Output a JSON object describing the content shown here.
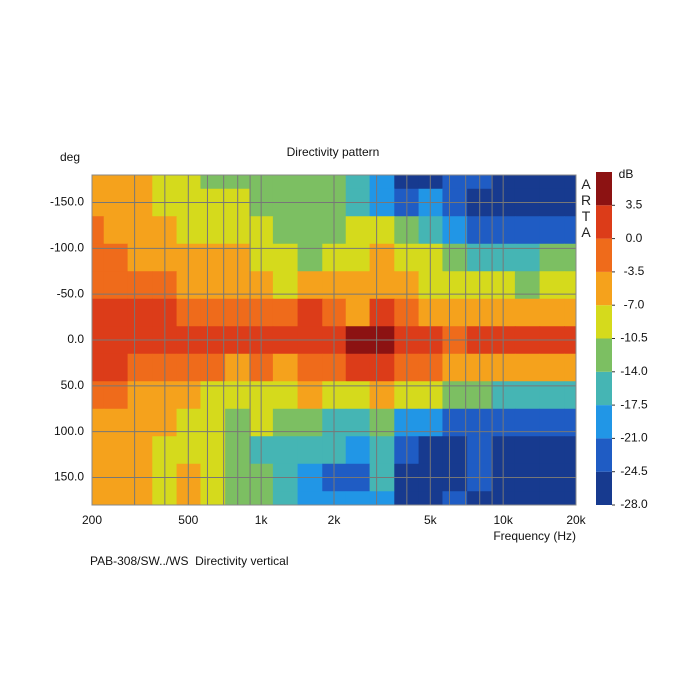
{
  "chart_data": {
    "type": "heatmap",
    "title": "Directivity pattern",
    "footer": "PAB-308/SW../WS  Directivity vertical",
    "x_label": "Frequency (Hz)",
    "y_label": "deg",
    "watermark": "ARTA",
    "colorbar_title": "dB",
    "x_log": true,
    "y_reversed": true,
    "grid": true,
    "xlim": [
      200,
      20000
    ],
    "xticks": [
      200,
      500,
      {
        "value": 1000,
        "label": "1k"
      },
      {
        "value": 2000,
        "label": "2k"
      },
      {
        "value": 5000,
        "label": "5k"
      },
      {
        "value": 10000,
        "label": "10k"
      },
      {
        "value": 20000,
        "label": "20k"
      }
    ],
    "x_minor_grid": [
      300,
      400,
      600,
      700,
      800,
      900,
      3000,
      4000,
      6000,
      7000,
      8000,
      9000
    ],
    "ylim": [
      -180,
      180
    ],
    "yticks": [
      {
        "value": -150,
        "label": "-150.0"
      },
      {
        "value": -100,
        "label": "-100.0"
      },
      {
        "value": -50,
        "label": "-50.0"
      },
      {
        "value": 0,
        "label": "0.0"
      },
      {
        "value": 50,
        "label": "50.0"
      },
      {
        "value": 100,
        "label": "100.0"
      },
      {
        "value": 150,
        "label": "150.0"
      }
    ],
    "colorlim": [
      -28,
      7
    ],
    "colorbar_ticks": [
      3.5,
      {
        "value": 0,
        "label": "0.0"
      },
      -3.5,
      {
        "value": -7,
        "label": "-7.0"
      },
      -10.5,
      {
        "value": -14,
        "label": "-14.0"
      },
      -17.5,
      {
        "value": -21,
        "label": "-21.0"
      },
      -24.5,
      {
        "value": -28,
        "label": "-28.0"
      }
    ],
    "colors": [
      "#173a8f",
      "#1f5cc4",
      "#2196e6",
      "#45b5b4",
      "#7cbf62",
      "#d5da1c",
      "#f5a21c",
      "#ef6b1b",
      "#dc3c19",
      "#8c1212"
    ],
    "x": [
      200,
      250,
      315,
      400,
      500,
      630,
      800,
      1000,
      1250,
      1600,
      2000,
      2500,
      3150,
      4000,
      5000,
      6300,
      8000,
      10000,
      12500,
      16000,
      20000
    ],
    "y": [
      -180,
      -150,
      -120,
      -90,
      -60,
      -30,
      0,
      30,
      60,
      90,
      120,
      150,
      180
    ],
    "values": [
      [
        -5,
        -5,
        -5,
        -9,
        -9,
        -12,
        -12,
        -12,
        -13,
        -13,
        -13,
        -15,
        -20,
        -26,
        -26,
        -23,
        -23,
        -26,
        -26,
        -26,
        -26
      ],
      [
        -5,
        -5,
        -5,
        -8,
        -9,
        -9,
        -9,
        -12,
        -12,
        -12,
        -12,
        -16,
        -19,
        -22,
        -19,
        -23,
        -25,
        -26,
        -26,
        -26,
        -26
      ],
      [
        -3,
        -5,
        -5,
        -6,
        -8,
        -9,
        -9,
        -9,
        -11,
        -12,
        -12,
        -9,
        -10,
        -12,
        -15,
        -19,
        -22,
        -23,
        -22,
        -23,
        -23
      ],
      [
        -2,
        -2,
        -4,
        -5,
        -5,
        -6,
        -6,
        -8,
        -9,
        -11,
        -9,
        -8,
        -6,
        -9,
        -10,
        -12,
        -15,
        -16,
        -15,
        -14,
        -13
      ],
      [
        -1,
        -1,
        -2,
        -3,
        -4,
        -5,
        -5,
        -6,
        -8,
        -6,
        -5,
        -5,
        -5,
        -6,
        -8,
        -9,
        -9,
        -10,
        -11,
        -10,
        -9
      ],
      [
        1,
        1,
        0.5,
        0.5,
        -2,
        -2,
        -3,
        -2,
        -1,
        0.5,
        -2,
        -4,
        1,
        -2,
        -4,
        -5,
        -5,
        -6,
        -5,
        -5,
        -6
      ],
      [
        1,
        1.5,
        1.5,
        1,
        0.5,
        1.5,
        1,
        0.5,
        0.5,
        1,
        2,
        4,
        5,
        2,
        1,
        -1,
        0.5,
        1,
        1,
        0.5,
        0.5
      ],
      [
        0.5,
        0.5,
        -1,
        -2,
        -2,
        -2,
        -4,
        -3,
        -4,
        -3,
        -2,
        0.5,
        0.5,
        -2,
        -3,
        -4,
        -5,
        -5,
        -5,
        -5,
        -5
      ],
      [
        -2,
        -2,
        -4,
        -5,
        -6,
        -8,
        -9,
        -8,
        -8,
        -6,
        -8,
        -10,
        -6,
        -9,
        -10,
        -13,
        -13,
        -15,
        -16,
        -15,
        -15
      ],
      [
        -5,
        -6,
        -6,
        -6,
        -8,
        -10,
        -11,
        -10,
        -12,
        -12,
        -15,
        -15,
        -13,
        -19,
        -18,
        -22,
        -23,
        -22,
        -23,
        -22,
        -22
      ],
      [
        -5,
        -5,
        -6,
        -9,
        -9,
        -10,
        -12,
        -15,
        -16,
        -15,
        -16,
        -19,
        -17,
        -22,
        -25,
        -26,
        -24,
        -26,
        -26,
        -26,
        -26
      ],
      [
        -5,
        -5,
        -6,
        -8,
        -6,
        -9,
        -12,
        -14,
        -16,
        -19,
        -22,
        -22,
        -17,
        -25,
        -26,
        -25,
        -24,
        -26,
        -27,
        -27,
        -27
      ],
      [
        -5,
        -5,
        -6,
        -9,
        -6,
        -9,
        -12,
        -13,
        -15,
        -18,
        -19,
        -21,
        -19,
        -25,
        -26,
        -23,
        -25,
        -26,
        -26,
        -26,
        -26
      ]
    ]
  }
}
